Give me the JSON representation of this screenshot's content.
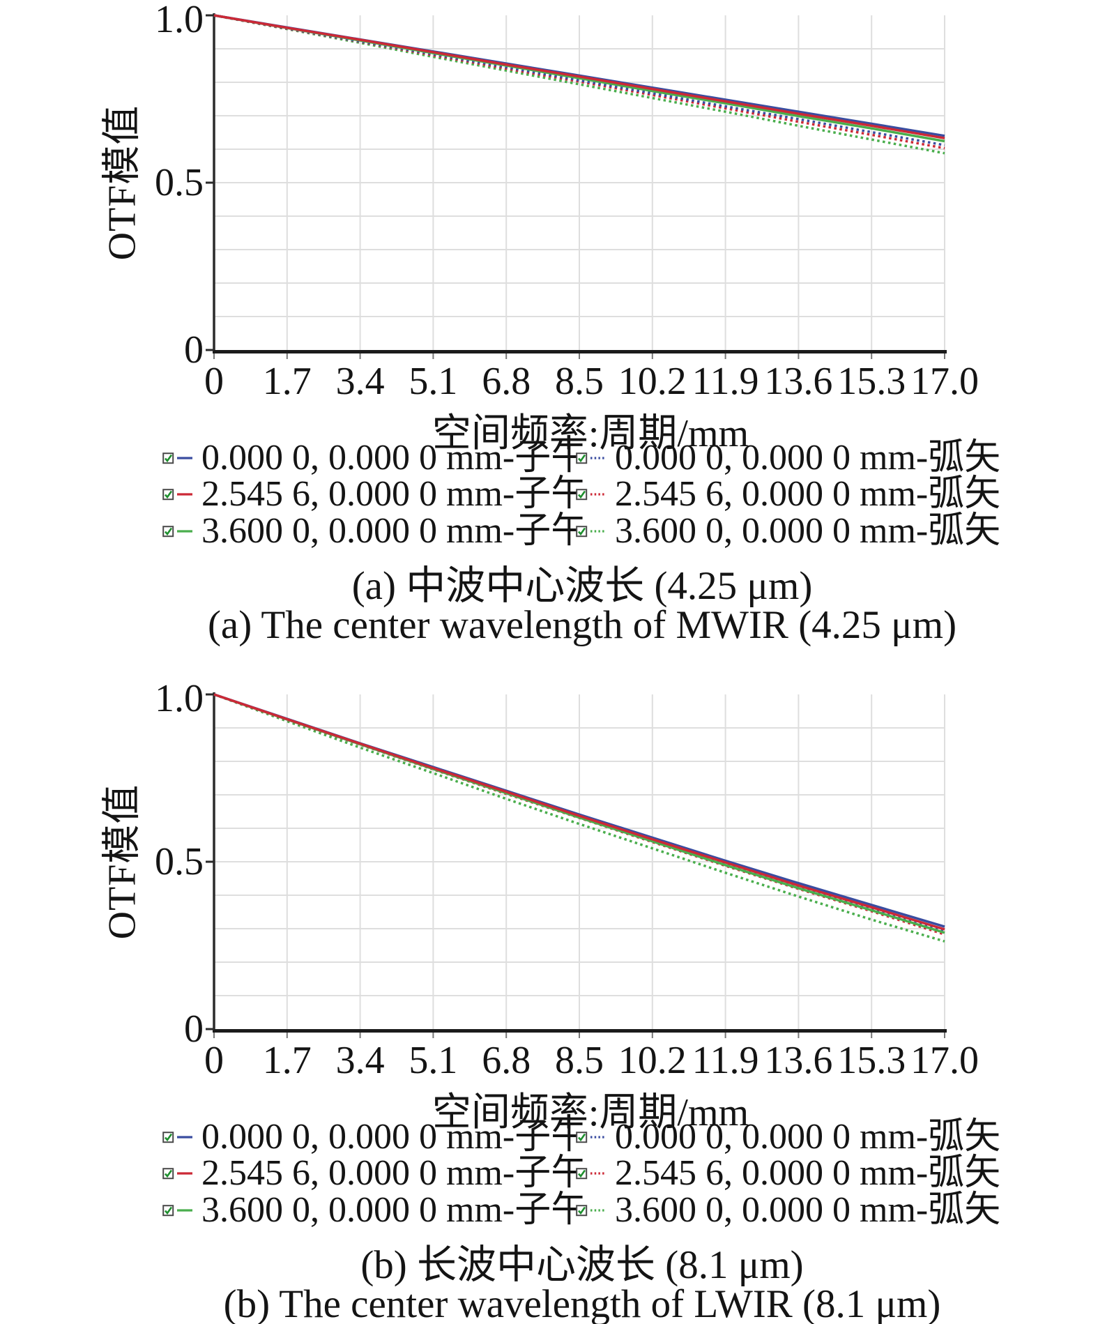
{
  "colors": {
    "blue": "#3a4da0",
    "red": "#cc2936",
    "green": "#4aae4d",
    "grid": "#dedede",
    "axis": "#2b2b2b",
    "check_green": "#1e8f2e"
  },
  "chart_data": [
    {
      "type": "line",
      "title_cn": "(a) 中波中心波长 (4.25 μm)",
      "title_en": "(a) The center wavelength of MWIR (4.25 μm)",
      "xlabel": "空间频率:周期/mm",
      "ylabel": "OTF模值",
      "xlim": [
        0,
        17
      ],
      "ylim": [
        0,
        1
      ],
      "grid": {
        "x_step": 1.7,
        "y_step": 0.1
      },
      "legend_position": "below",
      "x": [
        0,
        1.7,
        3.4,
        5.1,
        6.8,
        8.5,
        10.2,
        11.9,
        13.6,
        15.3,
        17.0
      ],
      "xticks": [
        "0",
        "1.7",
        "3.4",
        "5.1",
        "6.8",
        "8.5",
        "10.2",
        "11.9",
        "13.6",
        "15.3",
        "17.0"
      ],
      "yticks": [
        {
          "label": "0",
          "value": 0
        },
        {
          "label": "0.5",
          "value": 0.5
        },
        {
          "label": "1.0",
          "value": 1.0
        }
      ],
      "series": [
        {
          "name": "0.000 0,  0.000 0 mm-子午",
          "color": "blue",
          "style": "solid",
          "values": [
            1.0,
            0.964,
            0.928,
            0.892,
            0.856,
            0.82,
            0.784,
            0.748,
            0.712,
            0.676,
            0.64
          ]
        },
        {
          "name": "2.545 6,  0.000 0 mm-子午",
          "color": "red",
          "style": "solid",
          "values": [
            1.0,
            0.963,
            0.927,
            0.89,
            0.853,
            0.817,
            0.78,
            0.743,
            0.706,
            0.67,
            0.633
          ]
        },
        {
          "name": "3.600 0,  0.000 0 mm-子午",
          "color": "green",
          "style": "solid",
          "values": [
            1.0,
            0.962,
            0.925,
            0.887,
            0.85,
            0.812,
            0.774,
            0.737,
            0.699,
            0.662,
            0.624
          ]
        },
        {
          "name": "0.000 0,  0.000 0 mm-弧矢",
          "color": "blue",
          "style": "dotted",
          "values": [
            1.0,
            0.961,
            0.922,
            0.884,
            0.845,
            0.806,
            0.767,
            0.728,
            0.69,
            0.651,
            0.612
          ]
        },
        {
          "name": "2.545 6,  0.000 0 mm-弧矢",
          "color": "red",
          "style": "dotted",
          "values": [
            1.0,
            0.96,
            0.921,
            0.881,
            0.841,
            0.802,
            0.762,
            0.722,
            0.682,
            0.643,
            0.603
          ]
        },
        {
          "name": "3.600 0,  0.000 0 mm-弧矢",
          "color": "green",
          "style": "dotted",
          "values": [
            1.0,
            0.959,
            0.918,
            0.876,
            0.835,
            0.794,
            0.753,
            0.712,
            0.67,
            0.629,
            0.588
          ]
        }
      ]
    },
    {
      "type": "line",
      "title_cn": "(b) 长波中心波长 (8.1 μm)",
      "title_en": "(b) The center wavelength of LWIR (8.1 μm)",
      "xlabel": "空间频率:周期/mm",
      "ylabel": "OTF模值",
      "xlim": [
        0,
        17
      ],
      "ylim": [
        0,
        1
      ],
      "grid": {
        "x_step": 1.7,
        "y_step": 0.1
      },
      "legend_position": "below",
      "x": [
        0,
        1.7,
        3.4,
        5.1,
        6.8,
        8.5,
        10.2,
        11.9,
        13.6,
        15.3,
        17.0
      ],
      "xticks": [
        "0",
        "1.7",
        "3.4",
        "5.1",
        "6.8",
        "8.5",
        "10.2",
        "11.9",
        "13.6",
        "15.3",
        "17.0"
      ],
      "yticks": [
        {
          "label": "0",
          "value": 0
        },
        {
          "label": "0.5",
          "value": 0.5
        },
        {
          "label": "1.0",
          "value": 1.0
        }
      ],
      "series": [
        {
          "name": "0.000 0,  0.000 0 mm-子午",
          "color": "blue",
          "style": "solid",
          "values": [
            1.0,
            0.927,
            0.854,
            0.783,
            0.712,
            0.641,
            0.572,
            0.503,
            0.436,
            0.371,
            0.306
          ]
        },
        {
          "name": "2.545 6,  0.000 0 mm-子午",
          "color": "red",
          "style": "solid",
          "values": [
            1.0,
            0.926,
            0.853,
            0.78,
            0.709,
            0.637,
            0.567,
            0.498,
            0.429,
            0.364,
            0.298
          ]
        },
        {
          "name": "3.600 0,  0.000 0 mm-子午",
          "color": "green",
          "style": "solid",
          "values": [
            1.0,
            0.925,
            0.851,
            0.777,
            0.705,
            0.632,
            0.561,
            0.49,
            0.421,
            0.355,
            0.288
          ]
        },
        {
          "name": "0.000 0,  0.000 0 mm-弧矢",
          "color": "blue",
          "style": "dotted",
          "values": [
            1.0,
            0.925,
            0.851,
            0.778,
            0.706,
            0.634,
            0.563,
            0.492,
            0.424,
            0.357,
            0.291
          ]
        },
        {
          "name": "2.545 6,  0.000 0 mm-弧矢",
          "color": "red",
          "style": "dotted",
          "values": [
            1.0,
            0.924,
            0.85,
            0.776,
            0.703,
            0.631,
            0.559,
            0.488,
            0.419,
            0.352,
            0.283
          ]
        },
        {
          "name": "3.600 0,  0.000 0 mm-弧矢",
          "color": "green",
          "style": "dotted",
          "values": [
            1.0,
            0.92,
            0.841,
            0.765,
            0.688,
            0.613,
            0.54,
            0.467,
            0.396,
            0.327,
            0.262
          ]
        }
      ]
    }
  ]
}
